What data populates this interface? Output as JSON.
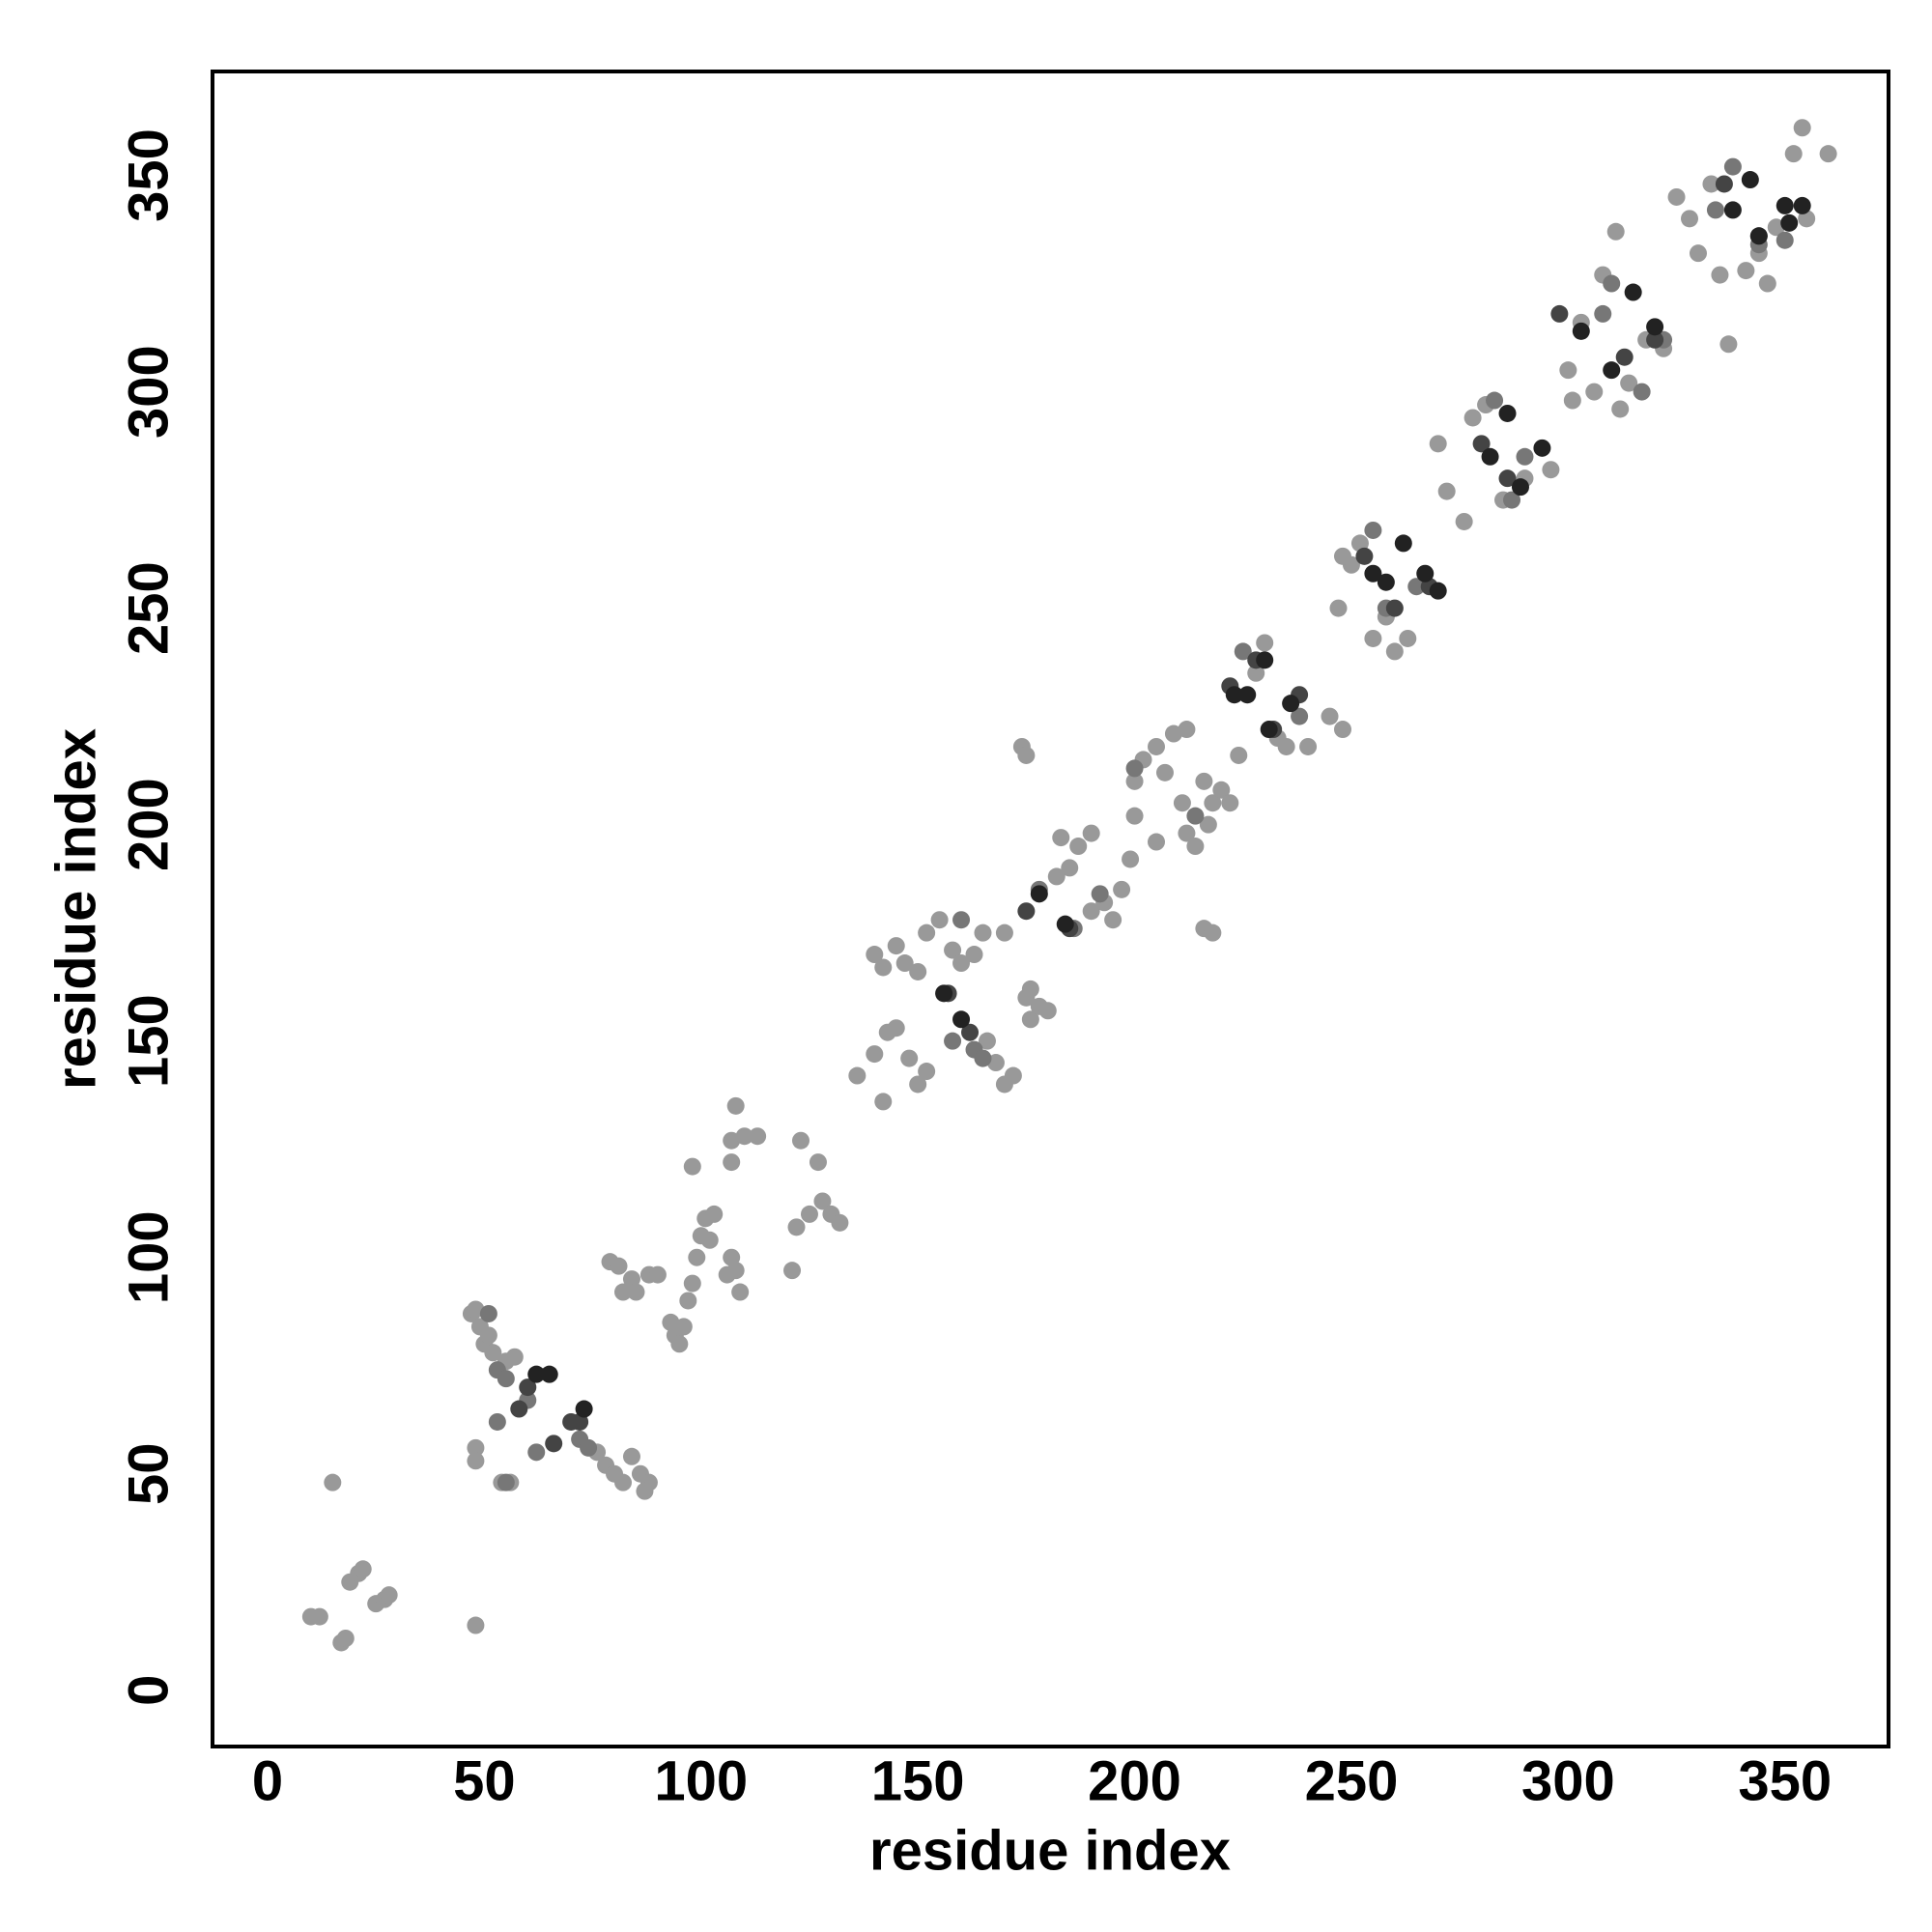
{
  "chart_data": {
    "type": "scatter",
    "xlabel": "residue index",
    "ylabel": "residue index",
    "xlim": [
      -12.7,
      373.9
    ],
    "ylim": [
      -13,
      374
    ],
    "xticks": [
      0,
      50,
      100,
      150,
      200,
      250,
      300,
      350
    ],
    "yticks": [
      0,
      50,
      100,
      150,
      200,
      250,
      300,
      350
    ],
    "grid": false,
    "series": [
      {
        "color": "#999999",
        "x": [
          10,
          12,
          15,
          17,
          18,
          19,
          21,
          22,
          25,
          27,
          28,
          48,
          47,
          48,
          49,
          50,
          51,
          52,
          48,
          48,
          54,
          56,
          55,
          57,
          76,
          78,
          80,
          82,
          84,
          86,
          88,
          87,
          79,
          81,
          82,
          84,
          85,
          88,
          90,
          93,
          94,
          95,
          96,
          97,
          98,
          99,
          100,
          101,
          102,
          103,
          107,
          108,
          109,
          106,
          98,
          107,
          107,
          108,
          110,
          113,
          121,
          122,
          123,
          125,
          127,
          128,
          130,
          132,
          136,
          140,
          142,
          143,
          145,
          148,
          150,
          152,
          140,
          142,
          145,
          147,
          150,
          152,
          155,
          158,
          160,
          165,
          163,
          166,
          168,
          170,
          172,
          175,
          176,
          178,
          180,
          174,
          175,
          176,
          170,
          182,
          185,
          187,
          190,
          183,
          190,
          193,
          195,
          197,
          199,
          200,
          202,
          205,
          207,
          209,
          211,
          212,
          214,
          217,
          218,
          220,
          222,
          216,
          218,
          212,
          200,
          205,
          216,
          224,
          228,
          230,
          233,
          235,
          240,
          245,
          248,
          247,
          250,
          252,
          255,
          260,
          263,
          248,
          258,
          270,
          272,
          276,
          278,
          281,
          285,
          290,
          296,
          300,
          301,
          303,
          306,
          308,
          312,
          314,
          318,
          322,
          325,
          328,
          330,
          333,
          335,
          341,
          346,
          348,
          355,
          352,
          354,
          360,
          311,
          337,
          344
        ],
        "y": [
          17,
          17,
          48,
          11,
          12,
          25,
          27,
          28,
          20,
          21,
          22,
          15,
          87,
          88,
          84,
          80,
          82,
          78,
          56,
          53,
          48,
          48,
          76,
          77,
          55,
          52,
          50,
          48,
          54,
          50,
          48,
          46,
          99,
          98,
          92,
          95,
          92,
          96,
          96,
          85,
          82,
          80,
          84,
          90,
          94,
          100,
          105,
          109,
          104,
          110,
          100,
          97,
          92,
          96,
          121,
          122,
          127,
          135,
          128,
          128,
          97,
          107,
          127,
          110,
          122,
          113,
          110,
          108,
          142,
          147,
          136,
          152,
          153,
          146,
          140,
          143,
          170,
          167,
          172,
          168,
          166,
          175,
          178,
          171,
          168,
          175,
          170,
          150,
          145,
          140,
          142,
          160,
          155,
          158,
          157,
          218,
          216,
          162,
          175,
          188,
          190,
          195,
          198,
          197,
          180,
          182,
          178,
          185,
          192,
          210,
          215,
          218,
          212,
          221,
          205,
          198,
          195,
          200,
          205,
          208,
          205,
          176,
          175,
          222,
          202,
          196,
          210,
          216,
          235,
          242,
          220,
          218,
          218,
          225,
          222,
          250,
          260,
          265,
          243,
          240,
          243,
          262,
          248,
          288,
          277,
          270,
          294,
          297,
          275,
          280,
          282,
          305,
          298,
          316,
          300,
          327,
          296,
          302,
          312,
          310,
          345,
          340,
          332,
          348,
          327,
          328,
          325,
          338,
          340,
          355,
          361,
          355,
          337,
          311,
          332
        ]
      },
      {
        "color": "#777777",
        "x": [
          51,
          53,
          55,
          60,
          72,
          74,
          53,
          55,
          62,
          160,
          158,
          163,
          165,
          178,
          186,
          192,
          200,
          214,
          225,
          238,
          255,
          258,
          265,
          283,
          287,
          290,
          308,
          310,
          317,
          322,
          338,
          344,
          350,
          334
        ],
        "y": [
          87,
          74,
          72,
          67,
          58,
          56,
          62,
          48,
          55,
          178,
          150,
          148,
          146,
          185,
          176,
          184,
          213,
          202,
          240,
          225,
          268,
          250,
          255,
          298,
          275,
          285,
          318,
          325,
          300,
          312,
          352,
          334,
          335,
          342
        ]
      },
      {
        "color": "#444444",
        "x": [
          58,
          60,
          66,
          70,
          72,
          157,
          162,
          175,
          185,
          222,
          228,
          232,
          238,
          253,
          260,
          268,
          280,
          286,
          298,
          313,
          320,
          336,
          344
        ],
        "y": [
          65,
          70,
          57,
          62,
          62,
          161,
          152,
          180,
          176,
          232,
          238,
          222,
          230,
          262,
          250,
          255,
          288,
          280,
          318,
          308,
          312,
          348,
          336
        ]
      },
      {
        "color": "#222222",
        "x": [
          62,
          65,
          73,
          156,
          160,
          178,
          184,
          223,
          226,
          231,
          236,
          230,
          255,
          258,
          262,
          267,
          270,
          282,
          286,
          289,
          294,
          303,
          310,
          315,
          320,
          338,
          342,
          344,
          350,
          354,
          351
        ],
        "y": [
          73,
          73,
          65,
          161,
          155,
          184,
          177,
          230,
          230,
          222,
          228,
          238,
          258,
          256,
          265,
          258,
          254,
          285,
          295,
          278,
          287,
          314,
          305,
          323,
          315,
          342,
          349,
          336,
          343,
          343,
          339
        ]
      }
    ]
  }
}
